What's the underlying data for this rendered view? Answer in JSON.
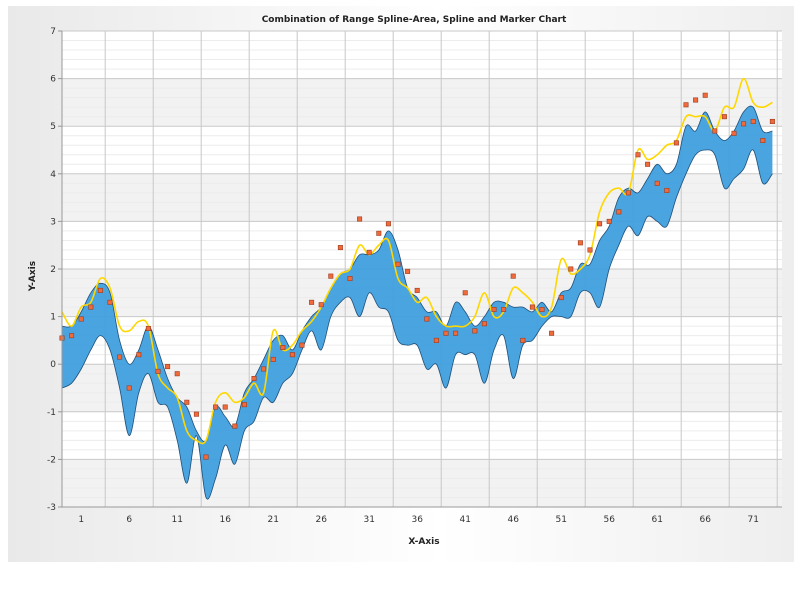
{
  "chart_data": {
    "type": "area",
    "title": "Combination of Range Spline-Area, Spline and Marker Chart",
    "xlabel": "X-Axis",
    "ylabel": "Y-Axis",
    "xlim": [
      -1,
      74
    ],
    "ylim": [
      -3,
      7
    ],
    "x_ticks": [
      1,
      6,
      11,
      16,
      21,
      26,
      31,
      36,
      41,
      46,
      51,
      56,
      61,
      66,
      71
    ],
    "y_ticks": [
      -3,
      -2,
      -1,
      0,
      1,
      2,
      3,
      4,
      5,
      6,
      7
    ],
    "grid": true,
    "legend": "none",
    "colors": {
      "range_fill": "#3f9fde",
      "range_stroke": "#1f4f78",
      "spline": "#ffd700",
      "marker": "#f06a3c",
      "marker_stroke": "#9a3c1e"
    },
    "series": [
      {
        "type": "range_spline_area",
        "x": [
          -1,
          0,
          1,
          2,
          3,
          4,
          5,
          6,
          7,
          8,
          9,
          10,
          11,
          12,
          13,
          14,
          15,
          16,
          17,
          18,
          19,
          20,
          21,
          22,
          23,
          24,
          25,
          26,
          27,
          28,
          29,
          30,
          31,
          32,
          33,
          34,
          35,
          36,
          37,
          38,
          39,
          40,
          41,
          42,
          43,
          44,
          45,
          46,
          47,
          48,
          49,
          50,
          51,
          52,
          53,
          54,
          55,
          56,
          57,
          58,
          59,
          60,
          61,
          62,
          63,
          64,
          65,
          66,
          67,
          68,
          69,
          70,
          71,
          72,
          73
        ],
        "low": [
          -0.5,
          -0.4,
          -0.1,
          0.3,
          0.6,
          0.3,
          -0.5,
          -1.5,
          -0.6,
          -0.2,
          -0.8,
          -0.9,
          -1.6,
          -2.5,
          -1.5,
          -2.8,
          -2.4,
          -1.7,
          -2.1,
          -1.4,
          -1.2,
          -0.7,
          -0.8,
          -0.4,
          -0.2,
          0.3,
          0.7,
          0.3,
          1.0,
          1.3,
          1.4,
          1.0,
          1.5,
          1.2,
          1.1,
          0.5,
          0.4,
          0.4,
          -0.1,
          0.0,
          -0.5,
          0.2,
          0.2,
          0.2,
          -0.4,
          0.3,
          0.6,
          -0.3,
          0.4,
          0.5,
          0.8,
          1.0,
          1.0,
          1.0,
          1.5,
          1.5,
          1.2,
          2.0,
          2.5,
          2.9,
          2.7,
          3.1,
          3.0,
          2.9,
          3.5,
          4.0,
          4.4,
          4.5,
          4.4,
          3.7,
          3.9,
          4.1,
          4.5,
          3.8,
          4.0
        ],
        "high": [
          0.8,
          0.8,
          1.1,
          1.5,
          1.7,
          1.5,
          0.5,
          0.0,
          0.3,
          0.8,
          0.3,
          -0.3,
          -0.7,
          -0.9,
          -1.4,
          -1.6,
          -0.9,
          -1.1,
          -1.3,
          -0.6,
          -0.3,
          0.1,
          0.5,
          0.6,
          0.3,
          0.7,
          1.0,
          1.2,
          1.6,
          1.9,
          2.0,
          2.3,
          2.3,
          2.4,
          2.8,
          2.4,
          1.6,
          1.4,
          1.1,
          1.1,
          0.8,
          1.3,
          1.1,
          0.8,
          1.0,
          1.3,
          1.3,
          1.2,
          1.2,
          1.1,
          1.3,
          1.1,
          1.5,
          1.6,
          2.1,
          2.1,
          2.6,
          2.9,
          3.5,
          3.7,
          3.6,
          3.9,
          4.2,
          4.0,
          4.2,
          5.0,
          4.9,
          5.3,
          4.9,
          4.7,
          4.9,
          5.3,
          5.4,
          4.9,
          4.9
        ]
      },
      {
        "type": "spline",
        "x": [
          -1,
          0,
          1,
          2,
          3,
          4,
          5,
          6,
          7,
          8,
          9,
          10,
          11,
          12,
          13,
          14,
          15,
          16,
          17,
          18,
          19,
          20,
          21,
          22,
          23,
          24,
          25,
          26,
          27,
          28,
          29,
          30,
          31,
          32,
          33,
          34,
          35,
          36,
          37,
          38,
          39,
          40,
          41,
          42,
          43,
          44,
          45,
          46,
          47,
          48,
          49,
          50,
          51,
          52,
          53,
          54,
          55,
          56,
          57,
          58,
          59,
          60,
          61,
          62,
          63,
          64,
          65,
          66,
          67,
          68,
          69,
          70,
          71,
          72,
          73
        ],
        "y": [
          1.1,
          0.8,
          1.2,
          1.3,
          1.8,
          1.6,
          0.8,
          0.7,
          0.9,
          0.8,
          -0.2,
          -0.5,
          -0.7,
          -1.4,
          -1.6,
          -1.6,
          -0.8,
          -0.6,
          -0.8,
          -0.7,
          -0.4,
          -0.6,
          0.7,
          0.3,
          0.4,
          0.7,
          0.9,
          1.2,
          1.6,
          1.9,
          2.0,
          2.5,
          2.3,
          2.5,
          2.6,
          1.8,
          1.6,
          1.3,
          1.4,
          1.0,
          0.8,
          0.8,
          0.8,
          1.0,
          1.5,
          1.0,
          1.1,
          1.6,
          1.5,
          1.3,
          1.0,
          1.2,
          2.2,
          1.9,
          2.0,
          2.3,
          3.2,
          3.6,
          3.7,
          3.6,
          4.5,
          4.3,
          4.4,
          4.6,
          4.7,
          5.2,
          5.2,
          5.2,
          4.9,
          5.4,
          5.4,
          6.0,
          5.5,
          5.4,
          5.5
        ]
      },
      {
        "type": "marker",
        "x": [
          -1,
          0,
          1,
          2,
          3,
          4,
          5,
          6,
          7,
          8,
          9,
          10,
          11,
          12,
          13,
          14,
          15,
          16,
          17,
          18,
          19,
          20,
          21,
          22,
          23,
          24,
          25,
          26,
          27,
          28,
          29,
          30,
          31,
          32,
          33,
          34,
          35,
          36,
          37,
          38,
          39,
          40,
          41,
          42,
          43,
          44,
          45,
          46,
          47,
          48,
          49,
          50,
          51,
          52,
          53,
          54,
          55,
          56,
          57,
          58,
          59,
          60,
          61,
          62,
          63,
          64,
          65,
          66,
          67,
          68,
          69,
          70,
          71,
          72,
          73
        ],
        "y": [
          0.55,
          0.6,
          0.95,
          1.2,
          1.55,
          1.3,
          0.15,
          -0.5,
          0.2,
          0.75,
          -0.15,
          -0.05,
          -0.2,
          -0.8,
          -1.05,
          -1.95,
          -0.9,
          -0.9,
          -1.3,
          -0.85,
          -0.3,
          -0.1,
          0.1,
          0.35,
          0.2,
          0.4,
          1.3,
          1.25,
          1.85,
          2.45,
          1.8,
          3.05,
          2.35,
          2.75,
          2.95,
          2.1,
          1.95,
          1.55,
          0.95,
          0.5,
          0.65,
          0.65,
          1.5,
          0.7,
          0.85,
          1.15,
          1.15,
          1.85,
          0.5,
          1.2,
          1.15,
          0.65,
          1.4,
          2.0,
          2.55,
          2.4,
          2.95,
          3.0,
          3.2,
          3.6,
          4.4,
          4.2,
          3.8,
          3.65,
          4.65,
          5.45,
          5.55,
          5.65,
          4.9,
          5.2,
          4.85,
          5.05,
          5.1,
          4.7,
          5.1
        ]
      }
    ]
  }
}
